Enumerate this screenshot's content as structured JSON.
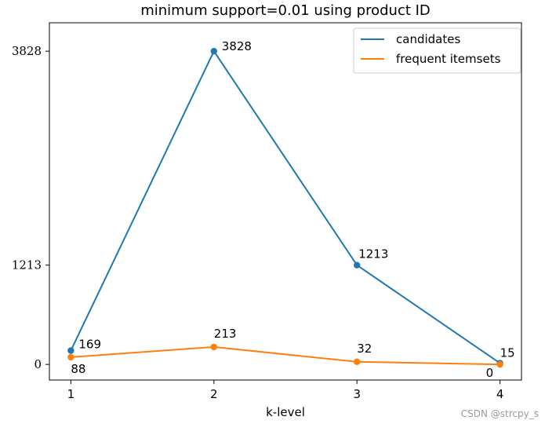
{
  "chart_data": {
    "type": "line",
    "title": "minimum support=0.01 using product ID",
    "xlabel": "k-level",
    "ylabel": "",
    "x": [
      1,
      2,
      3,
      4
    ],
    "x_ticks": [
      "1",
      "2",
      "3",
      "4"
    ],
    "y_ticks": [
      "0",
      "1213",
      "3828"
    ],
    "y_tick_values": [
      0,
      1213,
      3828
    ],
    "xlim": [
      0.85,
      4.15
    ],
    "ylim": [
      -191,
      4175
    ],
    "grid": false,
    "legend_position": "top-right",
    "series": [
      {
        "name": "candidates",
        "color": "#1f77b4",
        "values": [
          169,
          3828,
          1213,
          15
        ],
        "labels": [
          "169",
          "3828",
          "1213",
          "15"
        ]
      },
      {
        "name": "frequent itemsets",
        "color": "#ff7f0e",
        "values": [
          88,
          213,
          32,
          0
        ],
        "labels": [
          "88",
          "213",
          "32",
          "0"
        ]
      }
    ]
  },
  "watermark": "CSDN @strcpy_s"
}
